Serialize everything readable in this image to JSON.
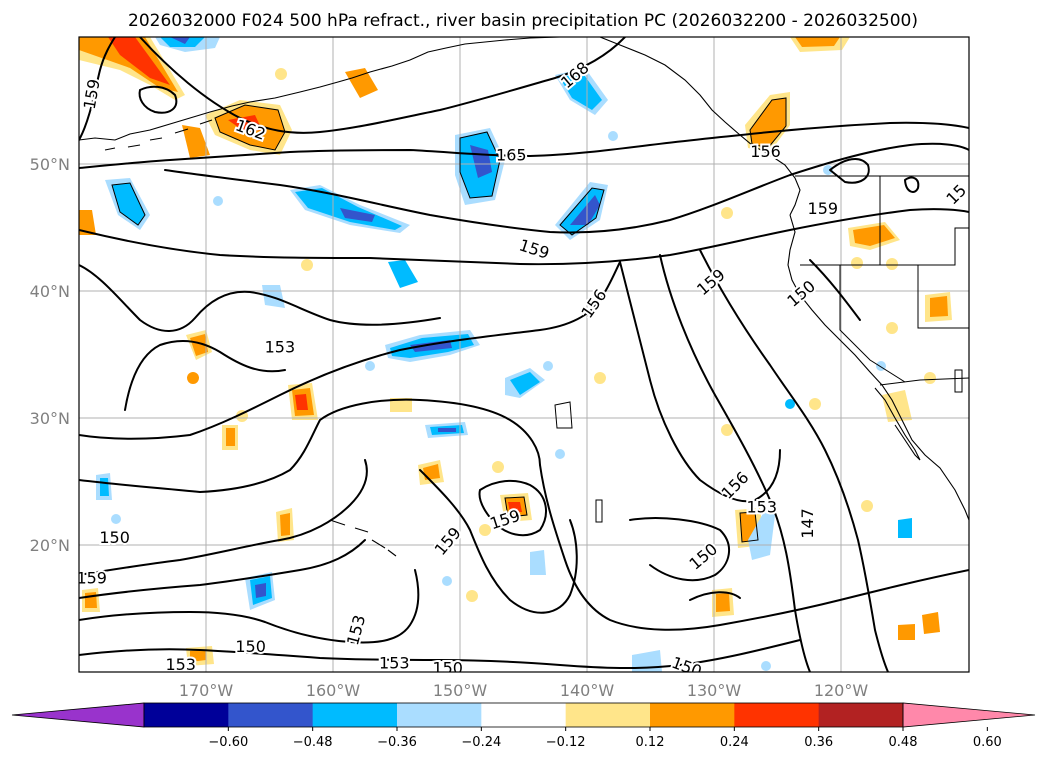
{
  "title": "2026032000 F024 500 hPa refract., river basin precipitation PC (2026032200 - 2026032500)",
  "map": {
    "lon_range": [
      -180,
      -110
    ],
    "lat_range": [
      10,
      60
    ],
    "lon_ticks": [
      {
        "value": -170,
        "label": "170°W"
      },
      {
        "value": -160,
        "label": "160°W"
      },
      {
        "value": -150,
        "label": "150°W"
      },
      {
        "value": -140,
        "label": "140°W"
      },
      {
        "value": -130,
        "label": "130°W"
      },
      {
        "value": -120,
        "label": "120°W"
      }
    ],
    "lat_ticks": [
      {
        "value": 50,
        "label": "50°N"
      },
      {
        "value": 40,
        "label": "40°N"
      },
      {
        "value": 30,
        "label": "30°N"
      },
      {
        "value": 20,
        "label": "20°N"
      }
    ],
    "grid": true,
    "contour_labels": [
      {
        "text": "159",
        "lon": -179,
        "lat": 55.5,
        "rot": -80
      },
      {
        "text": "162",
        "lon": -166.5,
        "lat": 52.7,
        "rot": 20
      },
      {
        "text": "168",
        "lon": -141,
        "lat": 57.0,
        "rot": -40
      },
      {
        "text": "165",
        "lon": -146,
        "lat": 50.7,
        "rot": 0
      },
      {
        "text": "156",
        "lon": -126,
        "lat": 51.0,
        "rot": 0
      },
      {
        "text": "159",
        "lon": -121.5,
        "lat": 46.5,
        "rot": 0
      },
      {
        "text": "15",
        "lon": -111,
        "lat": 47.6,
        "rot": -45
      },
      {
        "text": "159",
        "lon": -144.2,
        "lat": 43.3,
        "rot": 18
      },
      {
        "text": "156",
        "lon": -139.5,
        "lat": 39.0,
        "rot": -55
      },
      {
        "text": "159",
        "lon": -130.3,
        "lat": 40.7,
        "rot": -40
      },
      {
        "text": "150",
        "lon": -123.2,
        "lat": 39.8,
        "rot": -40
      },
      {
        "text": "153",
        "lon": -164.2,
        "lat": 35.6,
        "rot": 0
      },
      {
        "text": "150",
        "lon": -177.2,
        "lat": 20.6,
        "rot": 0
      },
      {
        "text": "159",
        "lon": -179,
        "lat": 17.4,
        "rot": 0
      },
      {
        "text": "159",
        "lon": -151,
        "lat": 20.3,
        "rot": -50
      },
      {
        "text": "159",
        "lon": -146.5,
        "lat": 22.0,
        "rot": -18
      },
      {
        "text": "156",
        "lon": -128.4,
        "lat": 24.7,
        "rot": -45
      },
      {
        "text": "153",
        "lon": -126.3,
        "lat": 23.0,
        "rot": 0
      },
      {
        "text": "150",
        "lon": -130.9,
        "lat": 19.1,
        "rot": -40
      },
      {
        "text": "147",
        "lon": -122.7,
        "lat": 21.7,
        "rot": -90
      },
      {
        "text": "153",
        "lon": -158.2,
        "lat": 13.3,
        "rot": -75
      },
      {
        "text": "150",
        "lon": -166.5,
        "lat": 12.0,
        "rot": 0
      },
      {
        "text": "153",
        "lon": -172.0,
        "lat": 10.6,
        "rot": 0
      },
      {
        "text": "153",
        "lon": -155.2,
        "lat": 10.7,
        "rot": 0
      },
      {
        "text": "150",
        "lon": -151.0,
        "lat": 10.3,
        "rot": 0
      },
      {
        "text": "150",
        "lon": -132.2,
        "lat": 10.4,
        "rot": 20
      }
    ]
  },
  "colorbar": {
    "colors": [
      "#9933cc",
      "#000099",
      "#3355cc",
      "#00bbff",
      "#aaddff",
      "#ffffff",
      "#ffe58a",
      "#ff9900",
      "#ff3300",
      "#b22222",
      "#ff88aa"
    ],
    "ticks": [
      "−0.60",
      "−0.48",
      "−0.36",
      "−0.24",
      "−0.12",
      "0.12",
      "0.24",
      "0.36",
      "0.48",
      "0.60"
    ]
  }
}
